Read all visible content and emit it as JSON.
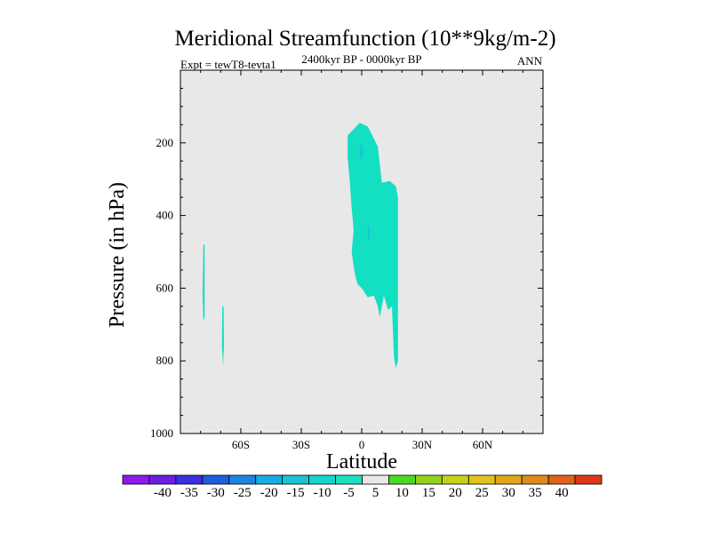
{
  "chart_data": {
    "type": "contour",
    "title": "Meridional Streamfunction (10**9kg/m-2)",
    "left_string": "Expt = tewT8-tevta1",
    "center_string": "2400kyr BP - 0000kyr BP",
    "right_string": "ANN",
    "xlabel": "Latitude",
    "ylabel": "Pressure (in hPa)",
    "xlim": [
      -90,
      90
    ],
    "ylim": [
      1000,
      0
    ],
    "xticks": [
      {
        "value": -60,
        "label": "60S"
      },
      {
        "value": -30,
        "label": "30S"
      },
      {
        "value": 0,
        "label": "0"
      },
      {
        "value": 30,
        "label": "30N"
      },
      {
        "value": 60,
        "label": "60N"
      }
    ],
    "yticks": [
      {
        "value": 200,
        "label": "200"
      },
      {
        "value": 400,
        "label": "400"
      },
      {
        "value": 600,
        "label": "600"
      },
      {
        "value": 800,
        "label": "800"
      },
      {
        "value": 1000,
        "label": "1000"
      }
    ],
    "background_color": "#e8e8e8",
    "regions": [
      {
        "name": "main-cell",
        "level": "-10 to -5",
        "color": "#13dfc2",
        "polygon": [
          [
            -7,
            180
          ],
          [
            -1,
            145
          ],
          [
            3,
            155
          ],
          [
            8,
            210
          ],
          [
            10,
            310
          ],
          [
            14,
            305
          ],
          [
            17,
            320
          ],
          [
            18,
            350
          ],
          [
            18,
            800
          ],
          [
            17,
            820
          ],
          [
            16,
            790
          ],
          [
            15,
            650
          ],
          [
            13,
            660
          ],
          [
            12,
            640
          ],
          [
            11,
            620
          ],
          [
            9,
            680
          ],
          [
            8,
            650
          ],
          [
            6,
            620
          ],
          [
            3,
            625
          ],
          [
            0,
            600
          ],
          [
            -2,
            590
          ],
          [
            -3,
            570
          ],
          [
            -4,
            540
          ],
          [
            -5,
            500
          ],
          [
            -4,
            440
          ],
          [
            -5,
            380
          ],
          [
            -6,
            300
          ],
          [
            -7,
            240
          ]
        ]
      },
      {
        "name": "core-upper",
        "level": "-15 to -10",
        "color": "#16c8d0",
        "polygon": [
          [
            -1,
            210
          ],
          [
            0,
            200
          ],
          [
            1,
            220
          ],
          [
            0,
            250
          ],
          [
            -1,
            240
          ]
        ]
      },
      {
        "name": "core-lower",
        "level": "-15 to -10",
        "color": "#16c8d0",
        "polygon": [
          [
            3,
            420
          ],
          [
            4,
            440
          ],
          [
            4,
            470
          ],
          [
            3,
            460
          ]
        ]
      },
      {
        "name": "sliver-1",
        "level": "-10 to -5",
        "color": "#13dfc2",
        "polygon": [
          [
            -78.6,
            480
          ],
          [
            -78.0,
            480
          ],
          [
            -78.0,
            680
          ],
          [
            -78.6,
            690
          ],
          [
            -79.0,
            620
          ]
        ]
      },
      {
        "name": "sliver-2",
        "level": "-10 to -5",
        "color": "#13dfc2",
        "polygon": [
          [
            -69.2,
            650
          ],
          [
            -68.6,
            650
          ],
          [
            -68.4,
            750
          ],
          [
            -68.8,
            815
          ],
          [
            -69.4,
            760
          ]
        ]
      }
    ],
    "colorbar": {
      "labels": [
        "-40",
        "-35",
        "-30",
        "-25",
        "-20",
        "-15",
        "-10",
        "-5",
        "5",
        "10",
        "15",
        "20",
        "25",
        "30",
        "35",
        "40"
      ],
      "colors": [
        "#8c1aea",
        "#6a1fe0",
        "#3b2fe2",
        "#1e5ddd",
        "#1e85dd",
        "#16aee0",
        "#18c4d6",
        "#16d6cc",
        "#1de0c2",
        "#e8e8e8",
        "#4cd825",
        "#91d21c",
        "#c8d01a",
        "#e0c41a",
        "#e0a81a",
        "#e08a1a",
        "#e0631a",
        "#e0371a"
      ]
    }
  }
}
